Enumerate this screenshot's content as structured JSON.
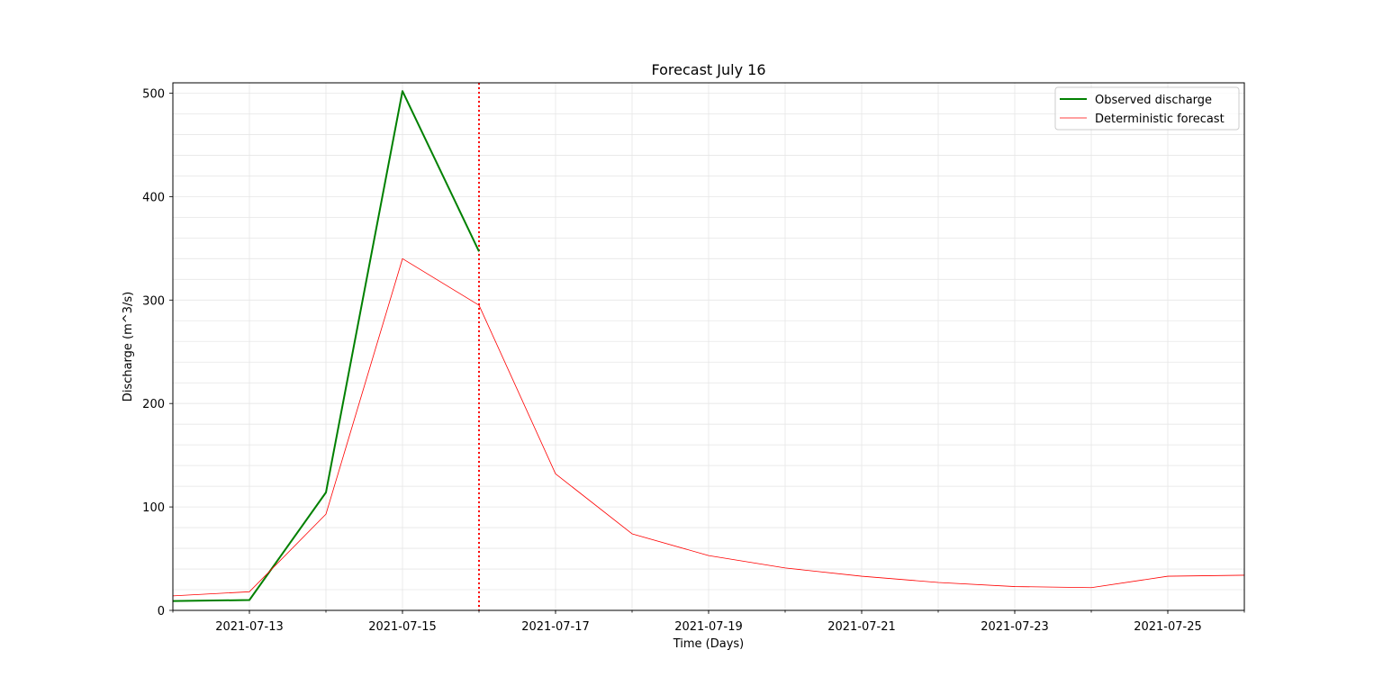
{
  "chart_data": {
    "type": "line",
    "title": "Forecast July 16",
    "xlabel": "Time (Days)",
    "ylabel": "Discharge (m^3/s)",
    "x_range": [
      "2021-07-12",
      "2021-07-26"
    ],
    "ylim": [
      0,
      510
    ],
    "x_ticks": [
      "2021-07-13",
      "2021-07-15",
      "2021-07-17",
      "2021-07-19",
      "2021-07-21",
      "2021-07-23",
      "2021-07-25"
    ],
    "y_ticks": [
      0,
      100,
      200,
      300,
      400,
      500
    ],
    "grid": true,
    "legend_position": "top-right",
    "forecast_date": "2021-07-16",
    "forecast_line_color": "#ff0000",
    "series": [
      {
        "name": "Observed discharge",
        "color": "#008000",
        "x": [
          "2021-07-12",
          "2021-07-13",
          "2021-07-14",
          "2021-07-15",
          "2021-07-16"
        ],
        "values": [
          9,
          10,
          114,
          502,
          347
        ]
      },
      {
        "name": "Deterministic forecast",
        "color": "#ff0000",
        "x": [
          "2021-07-12",
          "2021-07-13",
          "2021-07-14",
          "2021-07-15",
          "2021-07-16",
          "2021-07-17",
          "2021-07-18",
          "2021-07-19",
          "2021-07-20",
          "2021-07-21",
          "2021-07-22",
          "2021-07-23",
          "2021-07-24",
          "2021-07-25",
          "2021-07-26"
        ],
        "values": [
          14,
          18,
          93,
          340,
          295,
          132,
          74,
          53,
          41,
          33,
          27,
          23,
          22,
          33,
          34
        ]
      }
    ]
  }
}
